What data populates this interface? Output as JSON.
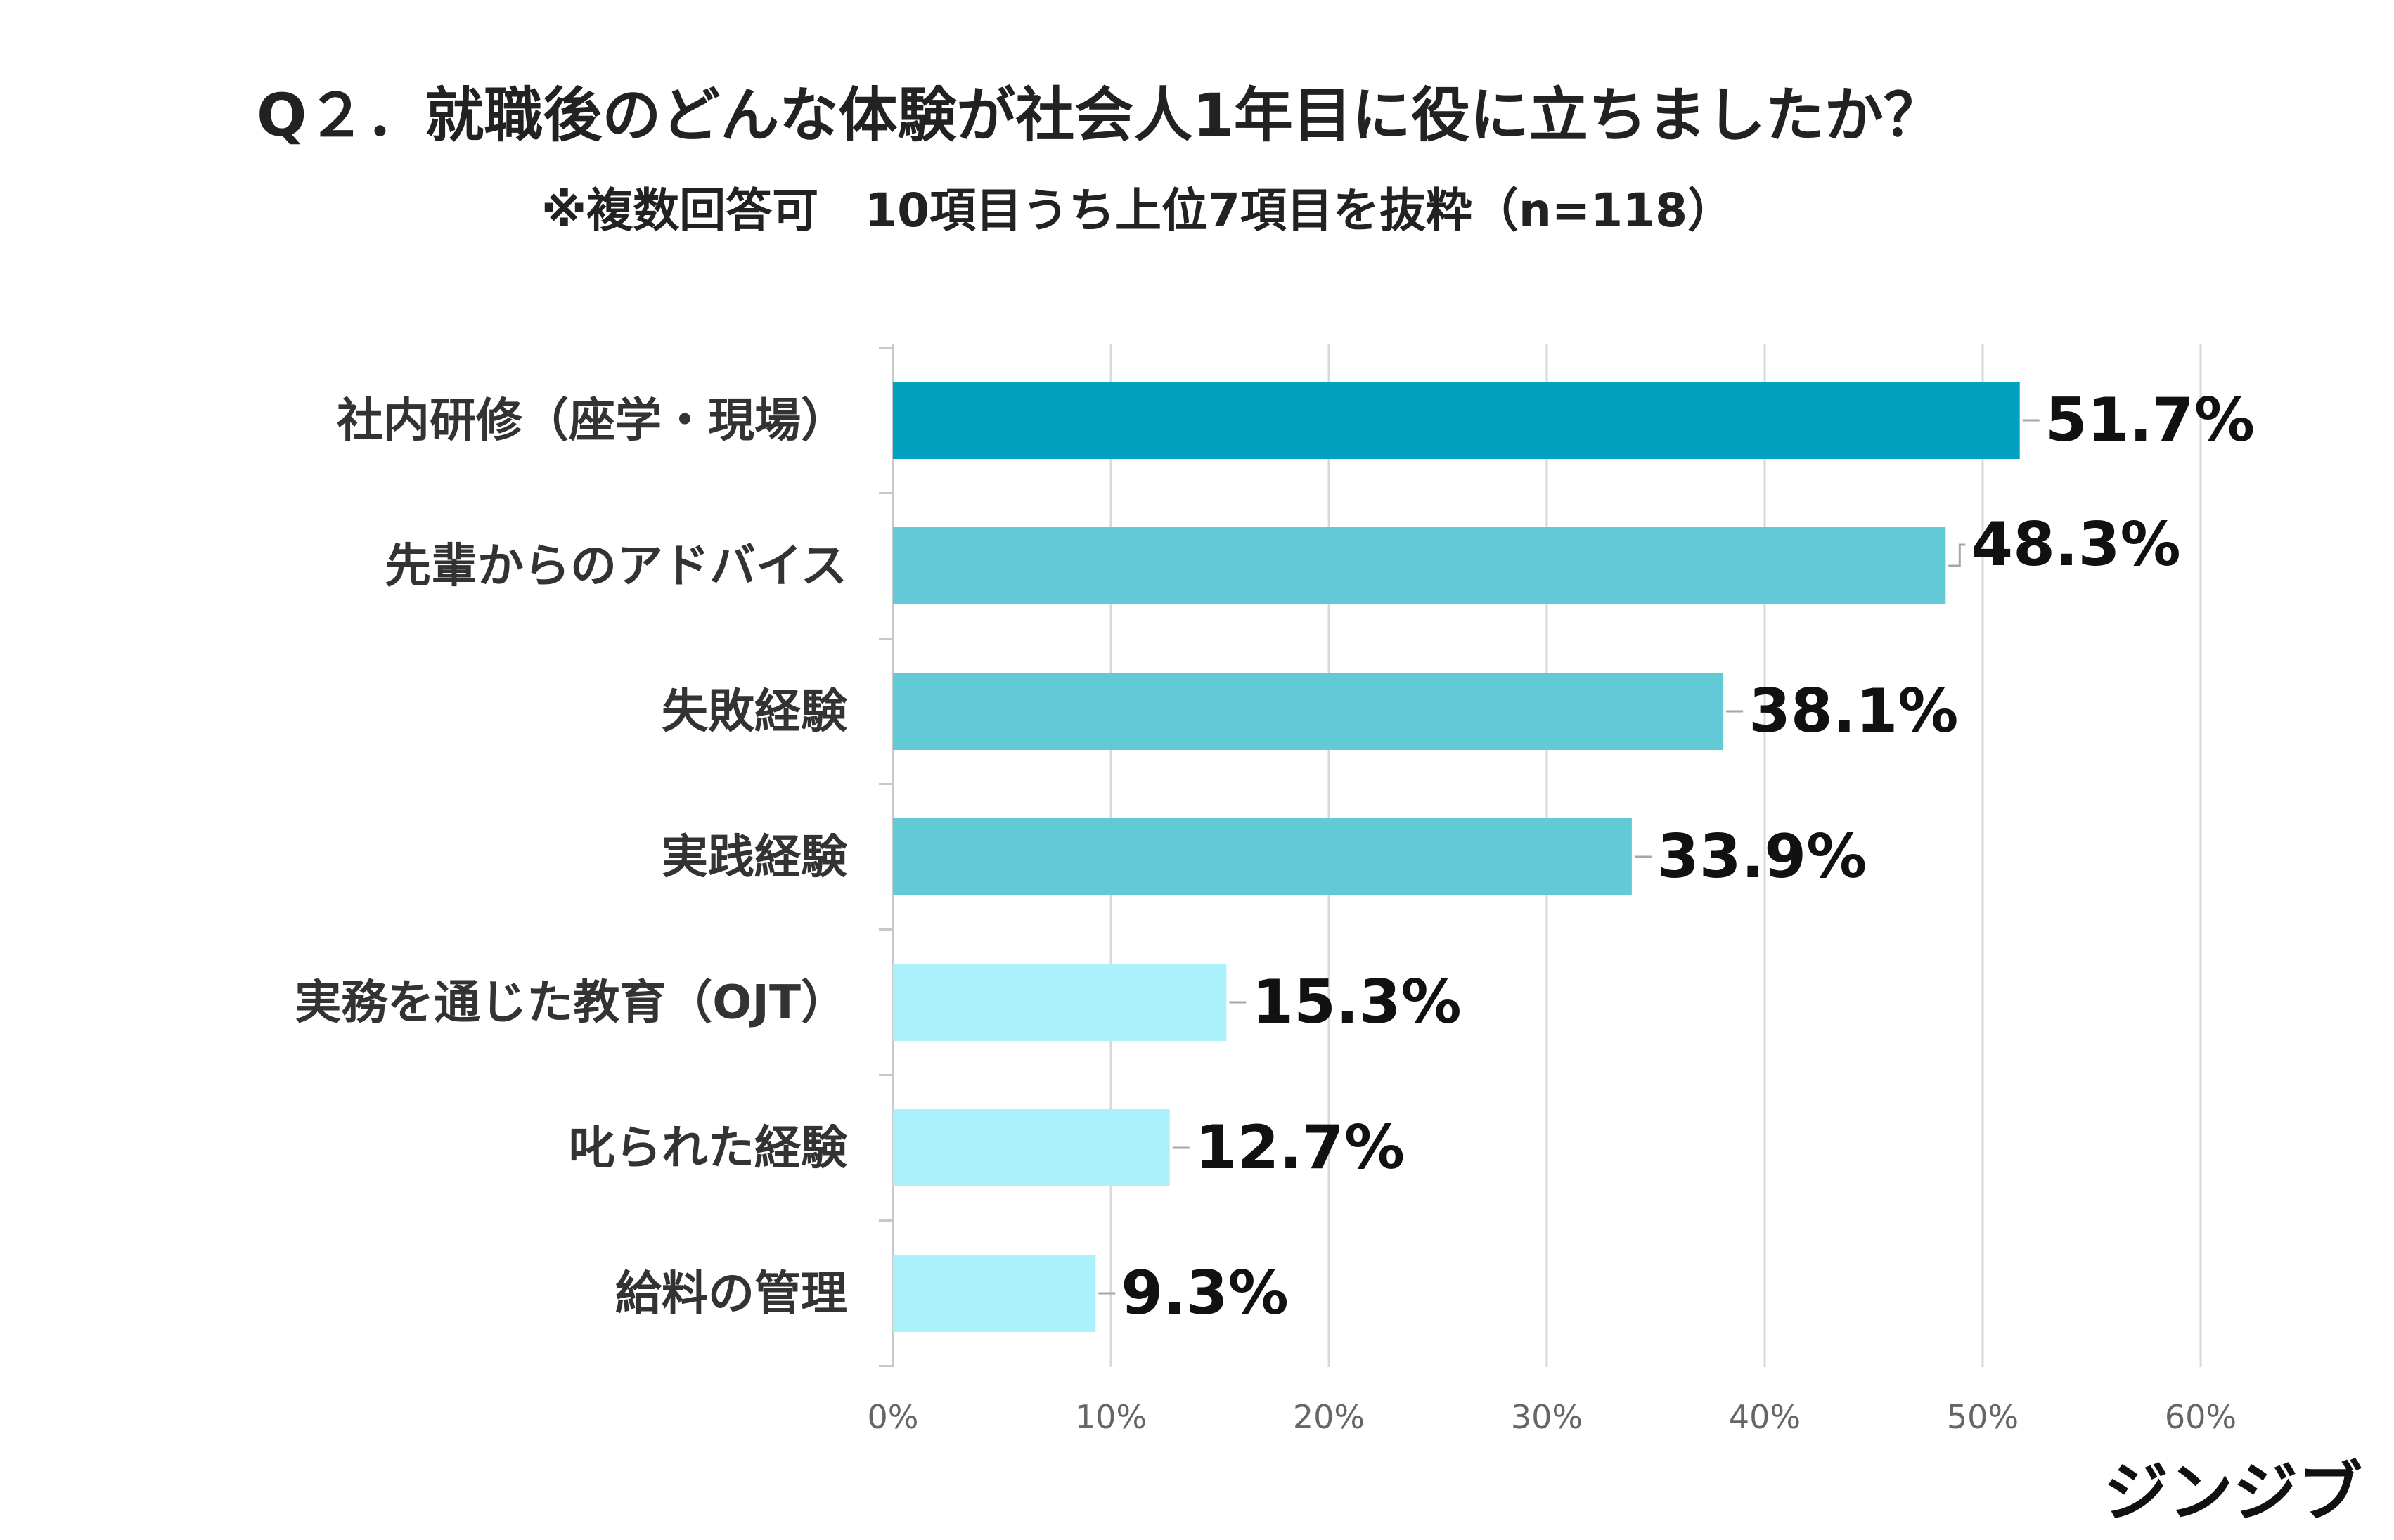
{
  "chart_data": {
    "type": "bar",
    "orientation": "horizontal",
    "title": "Q２．就職後のどんな体験が社会人1年目に役に立ちましたか？",
    "subtitle": "※複数回答可　10項目うち上位7項目を抜粋（n=118）",
    "categories": [
      "社内研修（座学・現場）",
      "先輩からのアドバイス",
      "失敗経験",
      "実践経験",
      "実務を通じた教育（OJT）",
      "叱られた経験",
      "給料の管理"
    ],
    "values": [
      51.7,
      48.3,
      38.1,
      33.9,
      15.3,
      12.7,
      9.3
    ],
    "value_labels": [
      "51.7%",
      "48.3%",
      "38.1%",
      "33.9%",
      "15.3%",
      "12.7%",
      "9.3%"
    ],
    "bar_colors": [
      "#00A0BF",
      "#62C9D6",
      "#62C9D6",
      "#62C9D6",
      "#AAF1FB",
      "#AAF1FB",
      "#AAF1FB"
    ],
    "xlim": [
      0,
      60
    ],
    "x_ticks": [
      0,
      10,
      20,
      30,
      40,
      50,
      60
    ],
    "x_tick_labels": [
      "0%",
      "10%",
      "20%",
      "30%",
      "40%",
      "50%",
      "60%"
    ],
    "grid": true,
    "xlabel": "",
    "ylabel": ""
  },
  "logo": {
    "text": "ジンジブ"
  },
  "colors": {
    "grid": "#d9d9d9",
    "axis": "#c8c8c8",
    "leader": "#a6a6a6"
  }
}
